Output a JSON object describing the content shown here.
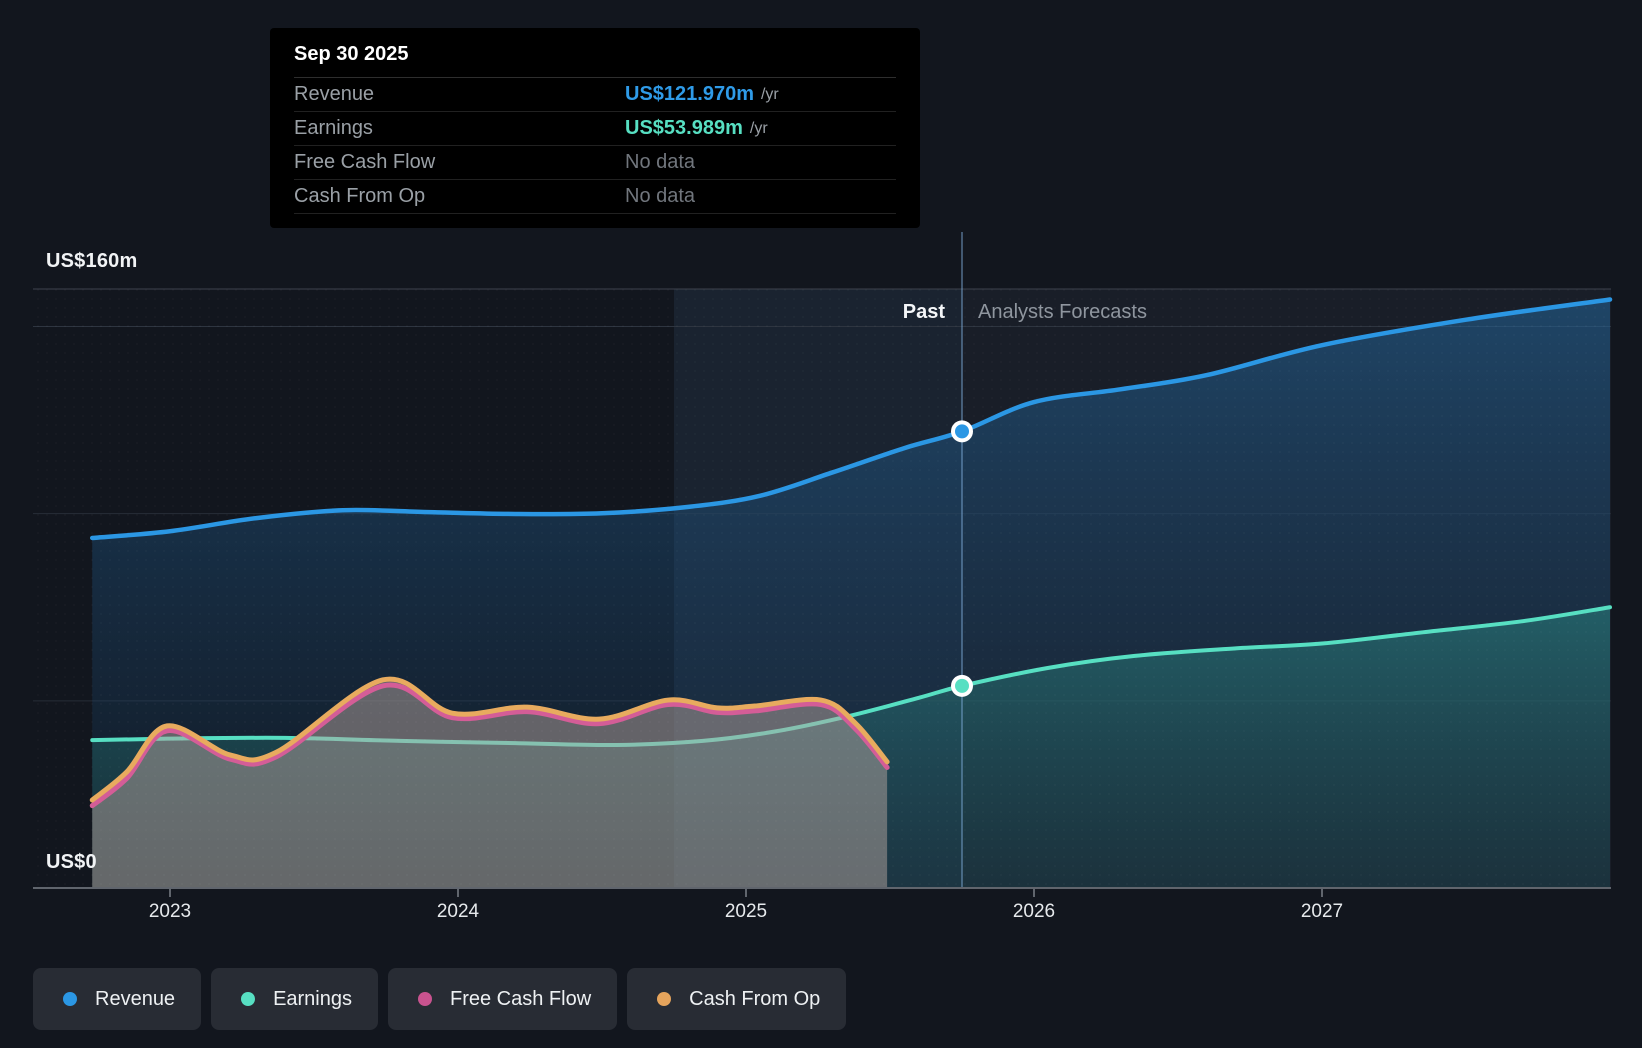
{
  "tooltip": {
    "title": "Sep 30 2025",
    "rows": [
      {
        "label": "Revenue",
        "value": "US$121.970m",
        "unit": "/yr",
        "value_color": "#2f9be8",
        "no_data": false
      },
      {
        "label": "Earnings",
        "value": "US$53.989m",
        "unit": "/yr",
        "value_color": "#57dfc2",
        "no_data": false
      },
      {
        "label": "Free Cash Flow",
        "value": "No data",
        "unit": "",
        "value_color": "#71767d",
        "no_data": true
      },
      {
        "label": "Cash From Op",
        "value": "No data",
        "unit": "",
        "value_color": "#71767d",
        "no_data": true
      }
    ]
  },
  "header": {
    "past_label": "Past",
    "forecast_label": "Analysts Forecasts"
  },
  "axes": {
    "y_top_label": "US$160m",
    "y_bottom_label": "US$0",
    "x_tick_labels": [
      "2023",
      "2024",
      "2025",
      "2026",
      "2027"
    ]
  },
  "legend": {
    "items": [
      {
        "label": "Revenue",
        "color": "#2b97e4"
      },
      {
        "label": "Earnings",
        "color": "#57dfc2"
      },
      {
        "label": "Free Cash Flow",
        "color": "#c9538f"
      },
      {
        "label": "Cash From Op",
        "color": "#e5a45c"
      }
    ]
  },
  "chart_data": {
    "type": "area",
    "title": "Earnings and Revenue Growth Forecast",
    "x_unit": "year",
    "y_unit": "US$ millions",
    "ylim": [
      0,
      160
    ],
    "xlim": [
      2022.73,
      2028.0
    ],
    "x_ticks": [
      2023,
      2024,
      2025,
      2026,
      2027
    ],
    "gridline_values": [
      160,
      150,
      100,
      50,
      0
    ],
    "grid": true,
    "legend_position": "bottom-left",
    "divider_x": 2025.75,
    "divider_date": "Sep 30 2025",
    "highlight_band_x": [
      2024.75,
      2025.75
    ],
    "series": [
      {
        "name": "Revenue",
        "color": "#2b97e4",
        "marker": {
          "x": 2025.75,
          "y": 121.97
        },
        "points": [
          [
            2022.73,
            93.5
          ],
          [
            2023.0,
            95.3
          ],
          [
            2023.3,
            98.8
          ],
          [
            2023.6,
            100.9
          ],
          [
            2023.9,
            100.4
          ],
          [
            2024.2,
            99.9
          ],
          [
            2024.5,
            100.1
          ],
          [
            2024.8,
            101.8
          ],
          [
            2025.05,
            104.8
          ],
          [
            2025.3,
            111.0
          ],
          [
            2025.55,
            117.5
          ],
          [
            2025.75,
            121.97
          ],
          [
            2026.0,
            129.8
          ],
          [
            2026.3,
            133.2
          ],
          [
            2026.6,
            137.0
          ],
          [
            2027.0,
            145.0
          ],
          [
            2027.5,
            151.8
          ],
          [
            2028.0,
            157.2
          ]
        ]
      },
      {
        "name": "Earnings",
        "color": "#57dfc2",
        "marker": {
          "x": 2025.75,
          "y": 53.989
        },
        "points": [
          [
            2022.73,
            39.5
          ],
          [
            2023.0,
            39.9
          ],
          [
            2023.4,
            40.1
          ],
          [
            2023.8,
            39.3
          ],
          [
            2024.2,
            38.7
          ],
          [
            2024.55,
            38.2
          ],
          [
            2024.85,
            39.3
          ],
          [
            2025.1,
            41.8
          ],
          [
            2025.35,
            45.8
          ],
          [
            2025.6,
            50.8
          ],
          [
            2025.75,
            53.989
          ],
          [
            2026.05,
            58.8
          ],
          [
            2026.35,
            62.0
          ],
          [
            2026.7,
            64.0
          ],
          [
            2027.0,
            65.3
          ],
          [
            2027.35,
            68.3
          ],
          [
            2027.7,
            71.3
          ],
          [
            2028.0,
            75.0
          ]
        ]
      },
      {
        "name": "Free Cash Flow",
        "color": "#d45d97",
        "points": [
          [
            2022.73,
            22.0
          ],
          [
            2022.85,
            29.3
          ],
          [
            2022.99,
            42.0
          ],
          [
            2023.21,
            34.4
          ],
          [
            2023.37,
            35.1
          ],
          [
            2023.74,
            54.0
          ],
          [
            2023.98,
            45.5
          ],
          [
            2024.24,
            47.1
          ],
          [
            2024.49,
            43.9
          ],
          [
            2024.73,
            49.0
          ],
          [
            2024.9,
            46.9
          ],
          [
            2025.03,
            47.3
          ],
          [
            2025.26,
            49.0
          ],
          [
            2025.38,
            42.5
          ],
          [
            2025.49,
            32.2
          ]
        ]
      },
      {
        "name": "Cash From Op",
        "color": "#e8ab5e",
        "points": [
          [
            2022.73,
            23.5
          ],
          [
            2022.85,
            31.0
          ],
          [
            2022.99,
            43.3
          ],
          [
            2023.21,
            35.5
          ],
          [
            2023.37,
            36.3
          ],
          [
            2023.74,
            55.6
          ],
          [
            2023.98,
            46.7
          ],
          [
            2024.24,
            48.3
          ],
          [
            2024.49,
            45.1
          ],
          [
            2024.73,
            50.2
          ],
          [
            2024.9,
            48.1
          ],
          [
            2025.03,
            48.6
          ],
          [
            2025.26,
            50.2
          ],
          [
            2025.38,
            44.0
          ],
          [
            2025.49,
            33.7
          ]
        ]
      }
    ]
  }
}
